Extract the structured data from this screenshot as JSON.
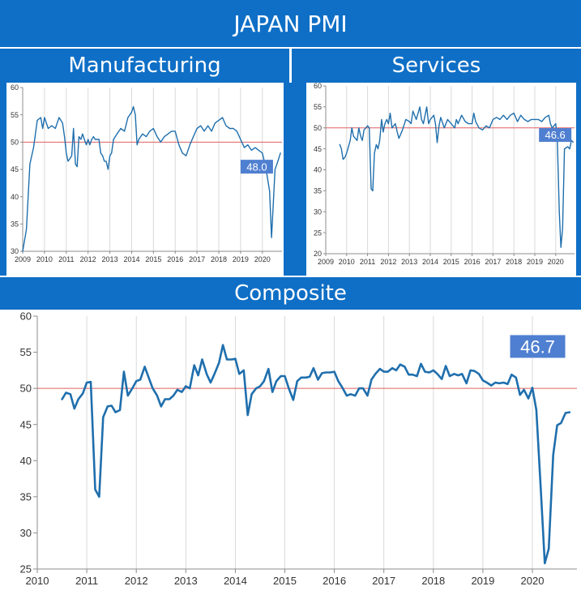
{
  "page": {
    "title": "JAPAN PMI"
  },
  "chart_data": [
    {
      "id": "manufacturing",
      "type": "line",
      "title": "Manufacturing",
      "ylim": [
        30,
        60
      ],
      "yticks": [
        "30",
        "35",
        "40",
        "45",
        "50",
        "55",
        "60"
      ],
      "xlim": [
        2009,
        2020.9
      ],
      "xticks": [
        "2009",
        "2010",
        "2011",
        "2012",
        "2013",
        "2014",
        "2015",
        "2016",
        "2017",
        "2018",
        "2019",
        "2020"
      ],
      "reference_line": 50,
      "line_color": "#1f6fad",
      "ref_color": "#e06060",
      "latest_label": "48.0",
      "points": [
        [
          2009.0,
          30
        ],
        [
          2009.17,
          34
        ],
        [
          2009.33,
          46
        ],
        [
          2009.5,
          49
        ],
        [
          2009.67,
          54
        ],
        [
          2009.83,
          54.5
        ],
        [
          2009.92,
          52.5
        ],
        [
          2010.0,
          54.5
        ],
        [
          2010.17,
          52.5
        ],
        [
          2010.33,
          53
        ],
        [
          2010.5,
          52.5
        ],
        [
          2010.67,
          54.5
        ],
        [
          2010.83,
          53.5
        ],
        [
          2010.92,
          51
        ],
        [
          2011.0,
          48
        ],
        [
          2011.08,
          46.5
        ],
        [
          2011.17,
          47
        ],
        [
          2011.25,
          47.5
        ],
        [
          2011.33,
          52.5
        ],
        [
          2011.42,
          46
        ],
        [
          2011.5,
          45.5
        ],
        [
          2011.58,
          51
        ],
        [
          2011.67,
          50.5
        ],
        [
          2011.75,
          51.5
        ],
        [
          2011.83,
          50.5
        ],
        [
          2011.92,
          49.5
        ],
        [
          2012.0,
          50.5
        ],
        [
          2012.08,
          49.5
        ],
        [
          2012.17,
          50.5
        ],
        [
          2012.25,
          51
        ],
        [
          2012.33,
          50.5
        ],
        [
          2012.5,
          50.5
        ],
        [
          2012.58,
          48
        ],
        [
          2012.67,
          47.5
        ],
        [
          2012.75,
          46.5
        ],
        [
          2012.83,
          46.5
        ],
        [
          2012.92,
          45
        ],
        [
          2013.0,
          47.5
        ],
        [
          2013.08,
          48
        ],
        [
          2013.17,
          50.5
        ],
        [
          2013.33,
          51.5
        ],
        [
          2013.5,
          52.5
        ],
        [
          2013.67,
          52
        ],
        [
          2013.83,
          54.5
        ],
        [
          2014.0,
          55.5
        ],
        [
          2014.08,
          56.5
        ],
        [
          2014.17,
          55
        ],
        [
          2014.25,
          49.5
        ],
        [
          2014.33,
          50.5
        ],
        [
          2014.5,
          51.5
        ],
        [
          2014.67,
          51
        ],
        [
          2014.83,
          52
        ],
        [
          2015.0,
          52.5
        ],
        [
          2015.17,
          51
        ],
        [
          2015.33,
          50
        ],
        [
          2015.5,
          51
        ],
        [
          2015.67,
          51.5
        ],
        [
          2015.83,
          52
        ],
        [
          2016.0,
          52
        ],
        [
          2016.17,
          49.5
        ],
        [
          2016.33,
          48
        ],
        [
          2016.5,
          47.5
        ],
        [
          2016.67,
          49.5
        ],
        [
          2016.83,
          51
        ],
        [
          2017.0,
          52.5
        ],
        [
          2017.17,
          53
        ],
        [
          2017.33,
          52
        ],
        [
          2017.5,
          53
        ],
        [
          2017.67,
          52
        ],
        [
          2017.83,
          53.5
        ],
        [
          2018.0,
          54
        ],
        [
          2018.17,
          54.5
        ],
        [
          2018.33,
          53
        ],
        [
          2018.5,
          52.5
        ],
        [
          2018.67,
          52.5
        ],
        [
          2018.83,
          52
        ],
        [
          2019.0,
          50.5
        ],
        [
          2019.17,
          49
        ],
        [
          2019.33,
          49.5
        ],
        [
          2019.5,
          48.5
        ],
        [
          2019.67,
          49
        ],
        [
          2019.83,
          48.5
        ],
        [
          2020.0,
          48
        ],
        [
          2020.17,
          45
        ],
        [
          2020.33,
          41
        ],
        [
          2020.42,
          32.5
        ],
        [
          2020.5,
          38.5
        ],
        [
          2020.58,
          45
        ],
        [
          2020.67,
          46
        ],
        [
          2020.75,
          47
        ],
        [
          2020.83,
          48
        ]
      ]
    },
    {
      "id": "services",
      "type": "line",
      "title": "Services",
      "ylim": [
        20,
        60
      ],
      "yticks": [
        "20",
        "25",
        "30",
        "35",
        "40",
        "45",
        "50",
        "55",
        "60"
      ],
      "xlim": [
        2009,
        2020.9
      ],
      "xticks": [
        "2009",
        "2010",
        "2011",
        "2012",
        "2013",
        "2014",
        "2015",
        "2016",
        "2017",
        "2018",
        "2019",
        "2020"
      ],
      "reference_line": 50,
      "line_color": "#1f6fad",
      "ref_color": "#e06060",
      "latest_label": "46.6",
      "points": [
        [
          2009.67,
          46
        ],
        [
          2009.75,
          45
        ],
        [
          2009.83,
          42.5
        ],
        [
          2009.92,
          43
        ],
        [
          2010.0,
          44
        ],
        [
          2010.17,
          47
        ],
        [
          2010.25,
          50
        ],
        [
          2010.33,
          48
        ],
        [
          2010.5,
          47
        ],
        [
          2010.58,
          50
        ],
        [
          2010.67,
          48
        ],
        [
          2010.75,
          47
        ],
        [
          2010.83,
          49.5
        ],
        [
          2010.92,
          50
        ],
        [
          2011.0,
          50.5
        ],
        [
          2011.08,
          50
        ],
        [
          2011.17,
          35.5
        ],
        [
          2011.25,
          35
        ],
        [
          2011.33,
          44
        ],
        [
          2011.42,
          46
        ],
        [
          2011.5,
          45
        ],
        [
          2011.58,
          47
        ],
        [
          2011.67,
          52
        ],
        [
          2011.75,
          49
        ],
        [
          2011.83,
          51
        ],
        [
          2011.92,
          52
        ],
        [
          2012.0,
          51
        ],
        [
          2012.08,
          53.5
        ],
        [
          2012.17,
          50
        ],
        [
          2012.33,
          51
        ],
        [
          2012.42,
          49
        ],
        [
          2012.5,
          47.5
        ],
        [
          2012.67,
          49.5
        ],
        [
          2012.83,
          52
        ],
        [
          2013.0,
          51.5
        ],
        [
          2013.08,
          51
        ],
        [
          2013.17,
          54
        ],
        [
          2013.33,
          52
        ],
        [
          2013.5,
          55
        ],
        [
          2013.58,
          52
        ],
        [
          2013.67,
          51
        ],
        [
          2013.83,
          55
        ],
        [
          2013.92,
          51
        ],
        [
          2014.0,
          52
        ],
        [
          2014.17,
          53
        ],
        [
          2014.25,
          51
        ],
        [
          2014.33,
          46.5
        ],
        [
          2014.42,
          50.5
        ],
        [
          2014.5,
          52.5
        ],
        [
          2014.67,
          50
        ],
        [
          2014.83,
          52
        ],
        [
          2015.0,
          51
        ],
        [
          2015.17,
          50
        ],
        [
          2015.25,
          52
        ],
        [
          2015.33,
          51
        ],
        [
          2015.5,
          53
        ],
        [
          2015.67,
          51.5
        ],
        [
          2015.83,
          51
        ],
        [
          2016.0,
          51
        ],
        [
          2016.08,
          53.5
        ],
        [
          2016.17,
          51.5
        ],
        [
          2016.33,
          50
        ],
        [
          2016.5,
          49.5
        ],
        [
          2016.67,
          50.5
        ],
        [
          2016.83,
          50
        ],
        [
          2017.0,
          52
        ],
        [
          2017.17,
          52.5
        ],
        [
          2017.33,
          52
        ],
        [
          2017.5,
          53
        ],
        [
          2017.67,
          52
        ],
        [
          2017.83,
          53
        ],
        [
          2018.0,
          53.5
        ],
        [
          2018.17,
          51.5
        ],
        [
          2018.33,
          53
        ],
        [
          2018.5,
          52
        ],
        [
          2018.67,
          51.5
        ],
        [
          2018.83,
          52
        ],
        [
          2019.0,
          52
        ],
        [
          2019.17,
          52
        ],
        [
          2019.33,
          51.5
        ],
        [
          2019.5,
          52.5
        ],
        [
          2019.67,
          53
        ],
        [
          2019.75,
          51
        ],
        [
          2019.83,
          50
        ],
        [
          2020.0,
          51
        ],
        [
          2020.08,
          47
        ],
        [
          2020.17,
          30
        ],
        [
          2020.25,
          21.5
        ],
        [
          2020.33,
          26
        ],
        [
          2020.42,
          45
        ],
        [
          2020.58,
          45.5
        ],
        [
          2020.67,
          45
        ],
        [
          2020.75,
          47
        ],
        [
          2020.83,
          46.6
        ]
      ]
    },
    {
      "id": "composite",
      "type": "line",
      "title": "Composite",
      "ylim": [
        25,
        60
      ],
      "yticks": [
        "25",
        "30",
        "35",
        "40",
        "45",
        "50",
        "55",
        "60"
      ],
      "xlim": [
        2010,
        2020.9
      ],
      "xticks": [
        "2010",
        "2011",
        "2012",
        "2013",
        "2014",
        "2015",
        "2016",
        "2017",
        "2018",
        "2019",
        "2020"
      ],
      "reference_line": 50,
      "line_color": "#1f6fad",
      "ref_color": "#e06060",
      "latest_label": "46.7",
      "points": [
        [
          2010.5,
          48.5
        ],
        [
          2010.58,
          49.4
        ],
        [
          2010.67,
          49.2
        ],
        [
          2010.75,
          47.2
        ],
        [
          2010.83,
          48.5
        ],
        [
          2010.92,
          49.3
        ],
        [
          2011.0,
          50.8
        ],
        [
          2011.08,
          50.9
        ],
        [
          2011.17,
          36
        ],
        [
          2011.25,
          35
        ],
        [
          2011.33,
          46
        ],
        [
          2011.42,
          47.5
        ],
        [
          2011.5,
          47.6
        ],
        [
          2011.58,
          46.7
        ],
        [
          2011.67,
          47
        ],
        [
          2011.75,
          52.3
        ],
        [
          2011.83,
          49
        ],
        [
          2011.92,
          50
        ],
        [
          2012.0,
          51
        ],
        [
          2012.08,
          51.2
        ],
        [
          2012.17,
          53
        ],
        [
          2012.25,
          51.5
        ],
        [
          2012.33,
          50
        ],
        [
          2012.42,
          49
        ],
        [
          2012.5,
          47.5
        ],
        [
          2012.58,
          48.5
        ],
        [
          2012.67,
          48.5
        ],
        [
          2012.75,
          49
        ],
        [
          2012.83,
          49.8
        ],
        [
          2012.92,
          49.5
        ],
        [
          2013.0,
          50.3
        ],
        [
          2013.08,
          50
        ],
        [
          2013.17,
          53.2
        ],
        [
          2013.25,
          51.8
        ],
        [
          2013.33,
          54
        ],
        [
          2013.42,
          52
        ],
        [
          2013.5,
          50.8
        ],
        [
          2013.58,
          52
        ],
        [
          2013.67,
          53.5
        ],
        [
          2013.75,
          56
        ],
        [
          2013.83,
          54
        ],
        [
          2013.92,
          54
        ],
        [
          2014.0,
          54.1
        ],
        [
          2014.08,
          52
        ],
        [
          2014.17,
          52.5
        ],
        [
          2014.25,
          46.3
        ],
        [
          2014.33,
          49.2
        ],
        [
          2014.42,
          50
        ],
        [
          2014.5,
          50.3
        ],
        [
          2014.58,
          51
        ],
        [
          2014.67,
          52.7
        ],
        [
          2014.75,
          49.5
        ],
        [
          2014.83,
          51
        ],
        [
          2014.92,
          51.7
        ],
        [
          2015.0,
          51.7
        ],
        [
          2015.08,
          50
        ],
        [
          2015.17,
          48.4
        ],
        [
          2015.25,
          51
        ],
        [
          2015.33,
          51.5
        ],
        [
          2015.42,
          51.5
        ],
        [
          2015.5,
          51.6
        ],
        [
          2015.58,
          52.8
        ],
        [
          2015.67,
          51.2
        ],
        [
          2015.75,
          52.1
        ],
        [
          2015.83,
          52.2
        ],
        [
          2015.92,
          52.2
        ],
        [
          2016.0,
          52.3
        ],
        [
          2016.08,
          51
        ],
        [
          2016.17,
          50
        ],
        [
          2016.25,
          49
        ],
        [
          2016.33,
          49.2
        ],
        [
          2016.42,
          49
        ],
        [
          2016.5,
          50
        ],
        [
          2016.58,
          50
        ],
        [
          2016.67,
          49
        ],
        [
          2016.75,
          51.2
        ],
        [
          2016.83,
          52
        ],
        [
          2016.92,
          52.7
        ],
        [
          2017.0,
          52.3
        ],
        [
          2017.08,
          52.3
        ],
        [
          2017.17,
          52.8
        ],
        [
          2017.25,
          52.5
        ],
        [
          2017.33,
          53.3
        ],
        [
          2017.42,
          53
        ],
        [
          2017.5,
          51.9
        ],
        [
          2017.58,
          51.9
        ],
        [
          2017.67,
          51.7
        ],
        [
          2017.75,
          53.4
        ],
        [
          2017.83,
          52.3
        ],
        [
          2017.92,
          52.2
        ],
        [
          2018.0,
          52.5
        ],
        [
          2018.08,
          52
        ],
        [
          2018.17,
          51.3
        ],
        [
          2018.25,
          53.1
        ],
        [
          2018.33,
          51.7
        ],
        [
          2018.42,
          52
        ],
        [
          2018.5,
          51.8
        ],
        [
          2018.58,
          52
        ],
        [
          2018.67,
          50.7
        ],
        [
          2018.75,
          52.5
        ],
        [
          2018.83,
          52.4
        ],
        [
          2018.92,
          52
        ],
        [
          2019.0,
          51.1
        ],
        [
          2019.08,
          50.8
        ],
        [
          2019.17,
          50.4
        ],
        [
          2019.25,
          50.8
        ],
        [
          2019.33,
          50.7
        ],
        [
          2019.42,
          50.8
        ],
        [
          2019.5,
          50.6
        ],
        [
          2019.58,
          51.9
        ],
        [
          2019.67,
          51.5
        ],
        [
          2019.75,
          49.1
        ],
        [
          2019.83,
          49.8
        ],
        [
          2019.92,
          48.6
        ],
        [
          2020.0,
          50.1
        ],
        [
          2020.08,
          47
        ],
        [
          2020.17,
          36
        ],
        [
          2020.25,
          25.8
        ],
        [
          2020.33,
          27.8
        ],
        [
          2020.42,
          40.8
        ],
        [
          2020.5,
          44.9
        ],
        [
          2020.58,
          45.2
        ],
        [
          2020.67,
          46.6
        ],
        [
          2020.75,
          46.7
        ]
      ]
    }
  ]
}
